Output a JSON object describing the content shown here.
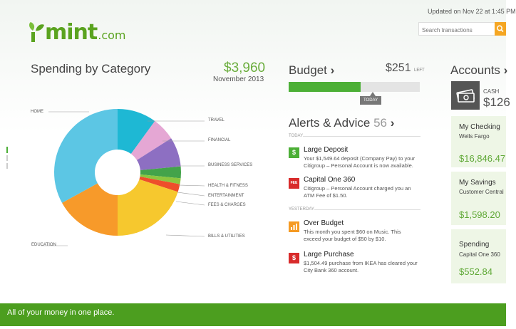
{
  "header": {
    "logo_text": "mint",
    "logo_suffix": ".com",
    "updated": "Updated on Nov 22 at 1:45 PM",
    "search_placeholder": "Search transactions"
  },
  "spending": {
    "title": "Spending by Category",
    "total": "$3,960",
    "period": "November 2013"
  },
  "chart_data": {
    "type": "pie",
    "donut": true,
    "title": "Spending by Category",
    "slices": [
      {
        "label": "TRAVEL",
        "value": 10,
        "color": "#1eb8d4"
      },
      {
        "label": "FINANCIAL",
        "value": 6,
        "color": "#e5a7d4"
      },
      {
        "label": "BUSINESS SERVICES",
        "value": 7.5,
        "color": "#8d6fc2"
      },
      {
        "label": "HEALTH & FITNESS",
        "value": 3,
        "color": "#43a34a"
      },
      {
        "label": "ENTERTAINMENT",
        "value": 1.5,
        "color": "#8cc63f"
      },
      {
        "label": "FEES & CHARGES",
        "value": 2,
        "color": "#ee4e2b"
      },
      {
        "label": "BILLS & UTILITIES",
        "value": 20,
        "color": "#f6c82e"
      },
      {
        "label": "EDUCATION",
        "value": 17,
        "color": "#f79a2a"
      },
      {
        "label": "HOME",
        "value": 33,
        "color": "#5cc6e4"
      }
    ]
  },
  "budget": {
    "title": "Budget",
    "arrow": "›",
    "amount": "$251",
    "amount_suffix": "LEFT",
    "today_label": "TODAY",
    "fill": 0.55
  },
  "alerts": {
    "title": "Alerts & Advice",
    "count": "56",
    "arrow": "›",
    "groups": [
      {
        "label": "TODAY",
        "items": [
          {
            "title": "Large Deposit",
            "text": "Your $1,549.64 deposit (Company Pay) to your Citigroup – Personal Account is now available.",
            "icon": "$",
            "icon_color": "#4caf36"
          },
          {
            "title": "Capital One 360",
            "text": "Citigroup – Personal Account charged you an ATM Fee of $1.50.",
            "icon": "FEE",
            "icon_color": "#d82b2b"
          }
        ]
      },
      {
        "label": "YESTERDAY",
        "items": [
          {
            "title": "Over Budget",
            "text": "This month you spent $60 on Music. This exceed your budget of $50 by $10.",
            "icon": "chart",
            "icon_color": "#f59a23"
          },
          {
            "title": "Large Purchase",
            "text": "$1,504.49 purchase from IKEA has cleared your City Bank 360 account.",
            "icon": "$",
            "icon_color": "#d82b2b"
          }
        ]
      }
    ]
  },
  "accounts": {
    "title": "Accounts",
    "arrow": "›",
    "cash_label": "CASH",
    "cash_amount": "$126",
    "tiles": [
      {
        "title": "My Checking",
        "sub": "Wells Fargo",
        "amount": "$16,846.47"
      },
      {
        "title": "My Savings",
        "sub": "Customer Central",
        "amount": "$1,598.20"
      },
      {
        "title": "Spending",
        "sub": "Capital One 360",
        "amount": "$552.84"
      }
    ]
  },
  "footer": {
    "tagline": "All of your money in one place."
  }
}
